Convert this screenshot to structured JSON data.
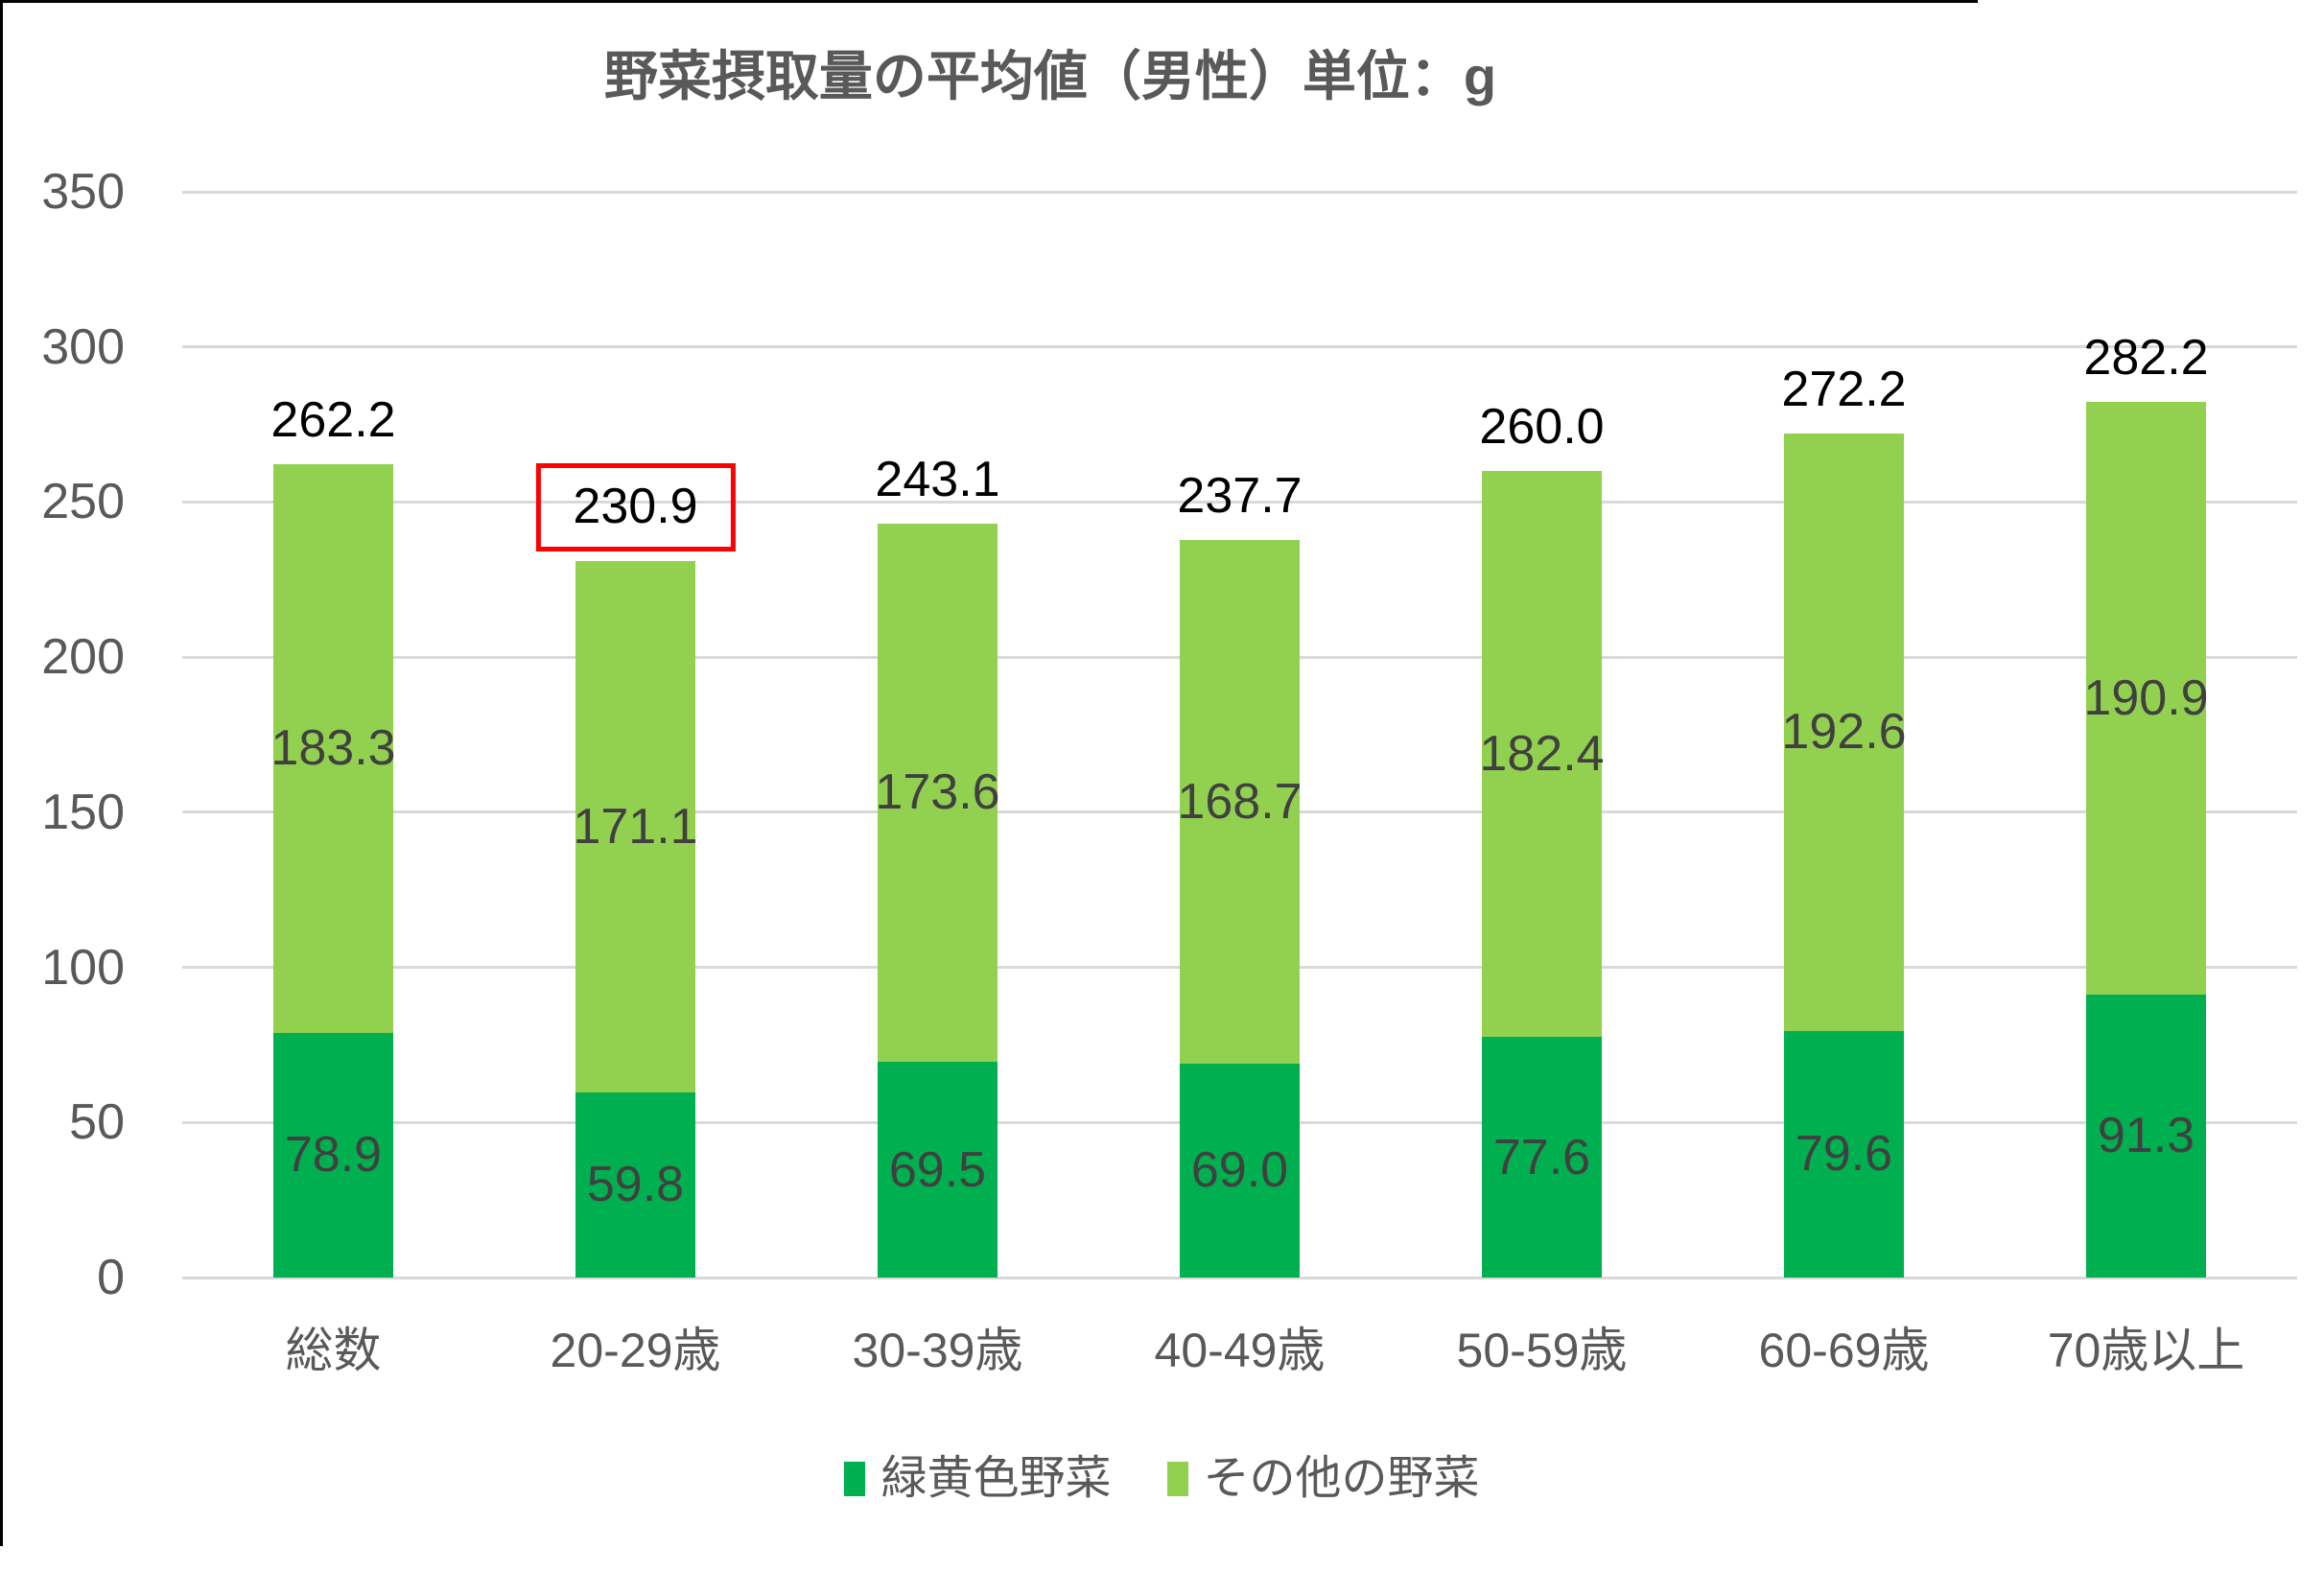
{
  "chart_data": {
    "type": "bar",
    "stacked": true,
    "title": "野菜摂取量の平均値（男性）単位：g",
    "unit": "g",
    "categories": [
      "総数",
      "20-29歳",
      "30-39歳",
      "40-49歳",
      "50-59歳",
      "60-69歳",
      "70歳以上"
    ],
    "series": [
      {
        "name": "緑黄色野菜",
        "color": "#00B050",
        "values": [
          78.9,
          59.8,
          69.5,
          69.0,
          77.6,
          79.6,
          91.3
        ],
        "labels": [
          "78.9",
          "59.8",
          "69.5",
          "69.0",
          "77.6",
          "79.6",
          "91.3"
        ]
      },
      {
        "name": "その他の野菜",
        "color": "#92D050",
        "values": [
          183.3,
          171.1,
          173.6,
          168.7,
          182.4,
          192.6,
          190.9
        ],
        "labels": [
          "183.3",
          "171.1",
          "173.6",
          "168.7",
          "182.4",
          "192.6",
          "190.9"
        ]
      }
    ],
    "totals": {
      "values": [
        262.2,
        230.9,
        243.1,
        237.7,
        260.0,
        272.2,
        282.2
      ],
      "labels": [
        "262.2",
        "230.9",
        "243.1",
        "237.7",
        "260.0",
        "272.2",
        "282.2"
      ],
      "highlighted_index": 1
    },
    "y_axis": {
      "min": 0,
      "max": 350,
      "step": 50,
      "tick_labels": [
        "0",
        "50",
        "100",
        "150",
        "200",
        "250",
        "300",
        "350"
      ]
    },
    "grid": true,
    "legend_position": "bottom",
    "annotations": [
      {
        "type": "highlight-box",
        "target": "total-value-label",
        "category": "20-29歳",
        "category_index": 1,
        "color": "#FF0000"
      }
    ]
  },
  "colors": {
    "series_green_yellow": "#00B050",
    "series_other": "#92D050",
    "gridline": "#D9D9D9",
    "axis_text": "#595959",
    "segment_label_text": "#404040",
    "total_label_text": "#000000",
    "highlight_box": "#FF0000",
    "background": "#FFFFFF",
    "screen_edge_line": "#000000"
  }
}
